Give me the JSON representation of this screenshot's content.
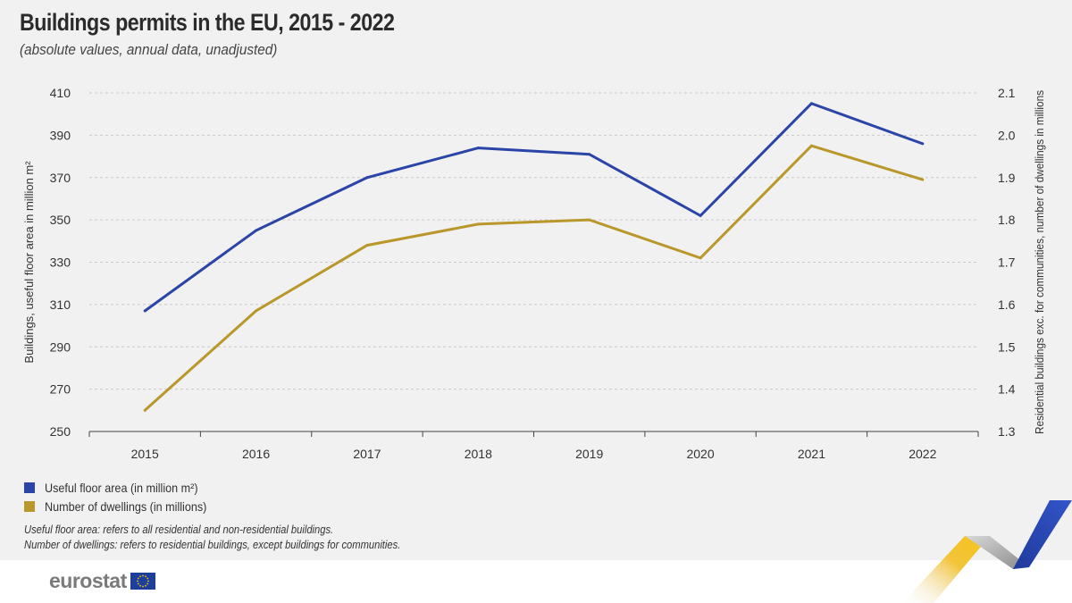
{
  "header": {
    "title": "Buildings permits in the EU, 2015 - 2022",
    "subtitle": "(absolute values, annual data, unadjusted)"
  },
  "legend": {
    "items": [
      {
        "label": "Useful floor area (in million m²)",
        "color": "#2a44a8"
      },
      {
        "label": "Number of dwellings (in millions)",
        "color": "#b9972b"
      }
    ]
  },
  "notes": [
    "Useful floor area: refers to all residential and non-residential buildings.",
    "Number of dwellings: refers to residential buildings, except buildings for communities."
  ],
  "footer": {
    "brand": "eurostat"
  },
  "chart_data": {
    "type": "line",
    "title": "Buildings permits in the EU, 2015 - 2022",
    "categories": [
      "2015",
      "2016",
      "2017",
      "2018",
      "2019",
      "2020",
      "2021",
      "2022"
    ],
    "y_left": {
      "label": "Buildings, useful floor area in million m²",
      "range": [
        250,
        410
      ],
      "ticks": [
        "250",
        "270",
        "290",
        "310",
        "330",
        "350",
        "370",
        "390",
        "410"
      ]
    },
    "y_right": {
      "label": "Residential buildings exc. for communities, number of dwellings in millions",
      "range": [
        1.3,
        2.1
      ],
      "ticks": [
        "1.3",
        "1.4",
        "1.5",
        "1.6",
        "1.7",
        "1.8",
        "1.9",
        "2.0",
        "2.1"
      ]
    },
    "grid": true,
    "legend_position": "bottom-left",
    "series": [
      {
        "name": "Useful floor area (in million m²)",
        "axis": "left",
        "color": "#2a44a8",
        "values": [
          307,
          345,
          370,
          384,
          381,
          352,
          405,
          386
        ]
      },
      {
        "name": "Number of dwellings (in millions)",
        "axis": "right",
        "color": "#b9972b",
        "values": [
          1.35,
          1.585,
          1.74,
          1.79,
          1.8,
          1.71,
          1.975,
          1.895
        ]
      }
    ]
  }
}
